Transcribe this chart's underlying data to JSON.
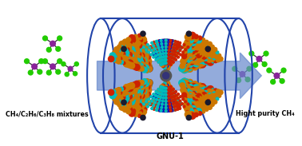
{
  "bg_color": "#ffffff",
  "cylinder_color": "#2244aa",
  "arrow_color": "#6688cc",
  "left_label": "CH₄/C₂H₆/C₃H₈ mixtures",
  "right_label": "Hight purity CH₄",
  "bottom_label": "GNU-1",
  "fig_width": 3.78,
  "fig_height": 1.83,
  "dpi": 100,
  "mol_purple": "#882299",
  "mol_green": "#22cc00",
  "orange": "#cc7700",
  "red": "#cc2200",
  "cyan": "#00bbbb",
  "blue": "#0000cc"
}
